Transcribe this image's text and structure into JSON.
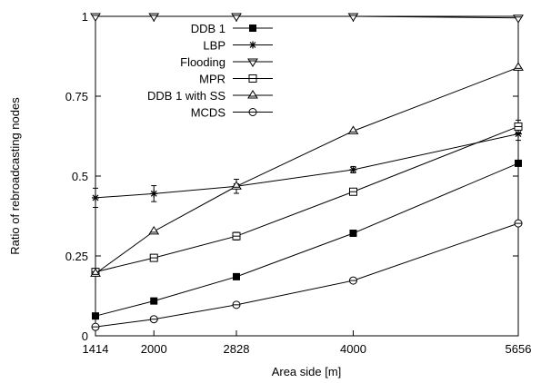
{
  "chart_data": {
    "type": "line",
    "xlabel": "Area side [m]",
    "ylabel": "Ratio of rebroadcasting nodes",
    "x": [
      1414,
      2000,
      2828,
      4000,
      5656
    ],
    "xticks": [
      "1414",
      "2000",
      "2828",
      "4000",
      "5656"
    ],
    "xlim": [
      1414,
      5656
    ],
    "yticks": [
      "0",
      "0.25",
      "0.5",
      "0.75",
      "1"
    ],
    "ylim": [
      0,
      1
    ],
    "grid": false,
    "legend_position": "top-left",
    "series": [
      {
        "name": "DDB 1",
        "marker": "filled-square",
        "values": [
          0.062,
          0.109,
          0.185,
          0.321,
          0.54
        ]
      },
      {
        "name": "LBP",
        "marker": "star",
        "values": [
          0.432,
          0.445,
          0.468,
          0.52,
          0.632
        ],
        "error": [
          0.03,
          0.025,
          0.022,
          0.01,
          0.02
        ]
      },
      {
        "name": "Flooding",
        "marker": "triangle-down",
        "values": [
          1.0,
          1.0,
          1.0,
          1.0,
          0.995
        ]
      },
      {
        "name": "MPR",
        "marker": "open-square",
        "values": [
          0.2,
          0.244,
          0.312,
          0.451,
          0.655
        ],
        "error": [
          0.01,
          0.01,
          0.012,
          0.008,
          0.02
        ]
      },
      {
        "name": "DDB 1 with SS",
        "marker": "triangle-up",
        "values": [
          0.195,
          0.327,
          0.468,
          0.641,
          0.84
        ]
      },
      {
        "name": "MCDS",
        "marker": "open-circle",
        "values": [
          0.028,
          0.052,
          0.097,
          0.173,
          0.352
        ]
      }
    ]
  }
}
